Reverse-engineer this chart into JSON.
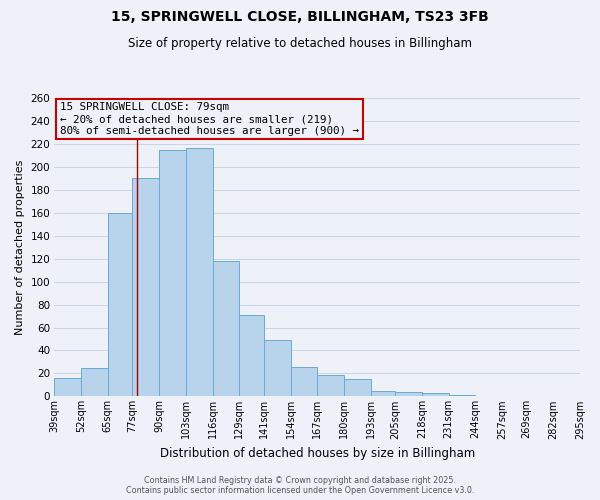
{
  "title": "15, SPRINGWELL CLOSE, BILLINGHAM, TS23 3FB",
  "subtitle": "Size of property relative to detached houses in Billingham",
  "xlabel": "Distribution of detached houses by size in Billingham",
  "ylabel": "Number of detached properties",
  "footer1": "Contains HM Land Registry data © Crown copyright and database right 2025.",
  "footer2": "Contains public sector information licensed under the Open Government Licence v3.0.",
  "bin_edges": [
    39,
    52,
    65,
    77,
    90,
    103,
    116,
    129,
    141,
    154,
    167,
    180,
    193,
    205,
    218,
    231,
    244,
    257,
    269,
    282,
    295
  ],
  "bin_labels": [
    "39sqm",
    "52sqm",
    "65sqm",
    "77sqm",
    "90sqm",
    "103sqm",
    "116sqm",
    "129sqm",
    "141sqm",
    "154sqm",
    "167sqm",
    "180sqm",
    "193sqm",
    "205sqm",
    "218sqm",
    "231sqm",
    "244sqm",
    "257sqm",
    "269sqm",
    "282sqm",
    "295sqm"
  ],
  "bar_heights": [
    16,
    25,
    160,
    190,
    215,
    216,
    118,
    71,
    49,
    26,
    19,
    15,
    5,
    4,
    3,
    1,
    0,
    0,
    0,
    0
  ],
  "bar_color": "#b8d4ec",
  "bar_edge_color": "#6aaad4",
  "grid_color": "#c8d4e4",
  "bg_color": "#eef2f8",
  "annotation_text": "15 SPRINGWELL CLOSE: 79sqm\n← 20% of detached houses are smaller (219)\n80% of semi-detached houses are larger (900) →",
  "annotation_box_color": "#cc0000",
  "vline_x": 79,
  "vline_color": "#aa0000",
  "ylim": [
    0,
    260
  ],
  "yticks": [
    0,
    20,
    40,
    60,
    80,
    100,
    120,
    140,
    160,
    180,
    200,
    220,
    240,
    260
  ]
}
